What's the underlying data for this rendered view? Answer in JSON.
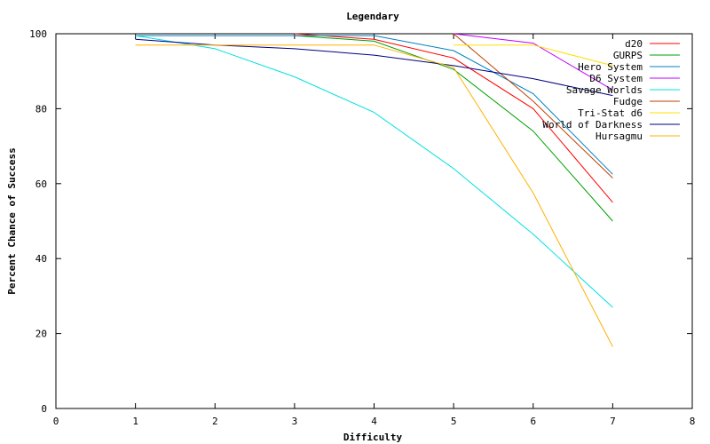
{
  "chart_data": {
    "type": "line",
    "title": "Legendary",
    "xlabel": "Difficulty",
    "ylabel": "Percent Chance of Success",
    "xlim": [
      0,
      8
    ],
    "ylim": [
      0,
      100
    ],
    "xticks": [
      "0",
      "1",
      "2",
      "3",
      "4",
      "5",
      "6",
      "7",
      "8"
    ],
    "yticks": [
      "0",
      "20",
      "40",
      "60",
      "80",
      "100"
    ],
    "grid": false,
    "legend_position": "top-right",
    "series": [
      {
        "name": "d20",
        "color": "#ff0000",
        "x": [
          3,
          4,
          5,
          6,
          7
        ],
        "y": [
          100,
          98.5,
          93.5,
          80,
          55
        ]
      },
      {
        "name": "GURPS",
        "color": "#00a000",
        "x": [
          3,
          4,
          5,
          6,
          7
        ],
        "y": [
          99.5,
          98,
          90.5,
          74,
          50
        ]
      },
      {
        "name": "Hero System",
        "color": "#0080c0",
        "x": [
          1,
          2,
          3,
          4,
          5,
          6,
          7
        ],
        "y": [
          99.5,
          99.5,
          99.5,
          99.5,
          95.5,
          84,
          62.5
        ]
      },
      {
        "name": "D6 System",
        "color": "#c000ff",
        "x": [
          5,
          6,
          7
        ],
        "y": [
          100,
          97.5,
          85
        ]
      },
      {
        "name": "Savage Worlds",
        "color": "#00e0e0",
        "x": [
          1,
          2,
          3,
          4,
          5,
          6,
          7
        ],
        "y": [
          99.5,
          96,
          88.5,
          79,
          64,
          46.5,
          27
        ]
      },
      {
        "name": "Fudge",
        "color": "#c04000",
        "x": [
          5,
          6,
          7
        ],
        "y": [
          100,
          82,
          61.5
        ]
      },
      {
        "name": "Tri-Stat d6",
        "color": "#ffe000",
        "x": [
          5,
          6,
          7
        ],
        "y": [
          97,
          97,
          91.5
        ]
      },
      {
        "name": "World of Darkness",
        "color": "#000080",
        "x": [
          1,
          2,
          3,
          4,
          5,
          6,
          7
        ],
        "y": [
          98.5,
          97,
          96,
          94.3,
          91.5,
          88,
          83.5
        ]
      },
      {
        "name": "Hursagmu",
        "color": "#ffb000",
        "x": [
          1,
          2,
          3,
          4,
          5,
          6,
          7
        ],
        "y": [
          97,
          97,
          97,
          97,
          91,
          57.5,
          16.5
        ]
      }
    ]
  }
}
